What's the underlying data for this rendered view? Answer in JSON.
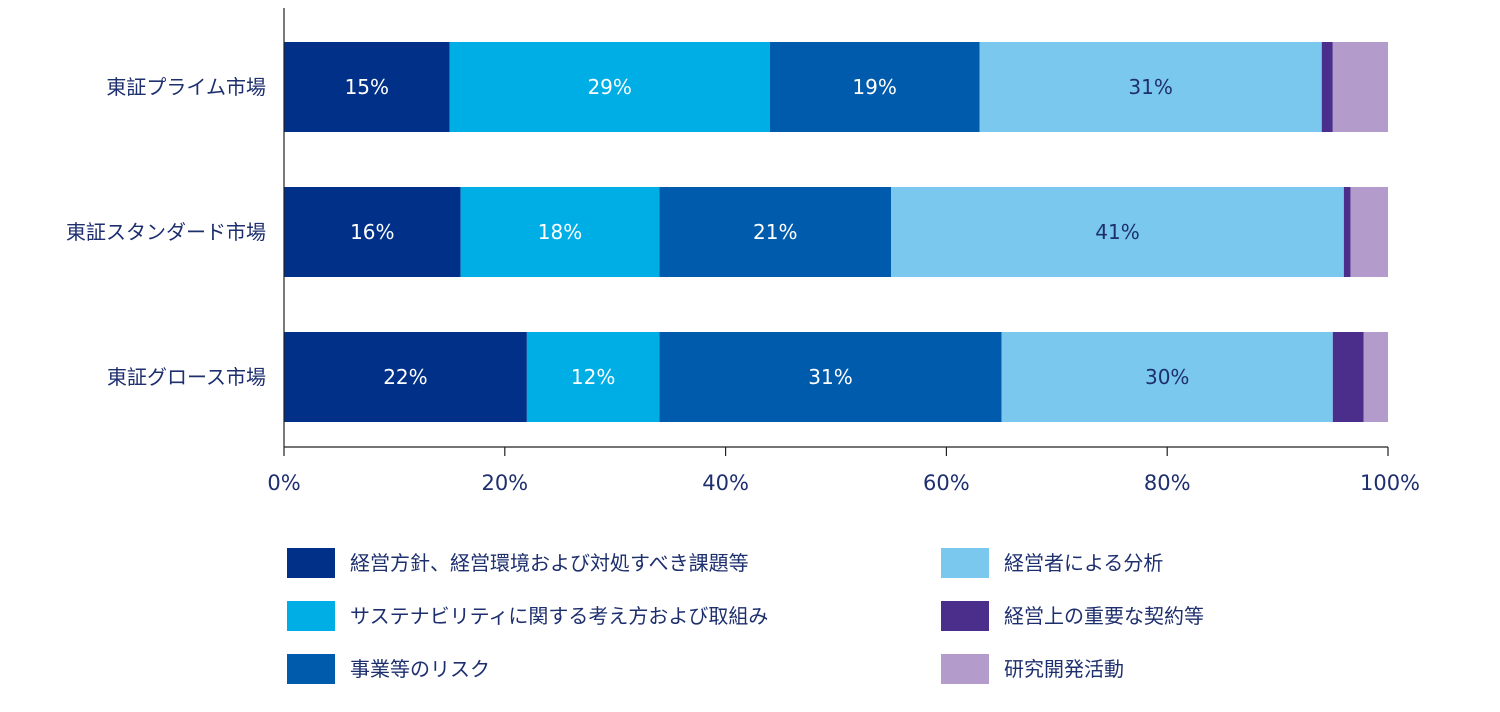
{
  "chart_data": {
    "type": "bar",
    "orientation": "horizontal",
    "stacked": true,
    "normalized": true,
    "categories": [
      "東証プライム市場",
      "東証スタンダード市場",
      "東証グロース市場"
    ],
    "series": [
      {
        "name": "経営方針、経営環境および対処すべき課題等",
        "color": "#003087",
        "label_color": "#ffffff",
        "values": [
          15,
          16,
          22
        ],
        "labels": [
          "15%",
          "16%",
          "22%"
        ]
      },
      {
        "name": "サステナビリティに関する考え方および取組み",
        "color": "#00aee6",
        "label_color": "#ffffff",
        "values": [
          29,
          18,
          12
        ],
        "labels": [
          "29%",
          "18%",
          "12%"
        ]
      },
      {
        "name": "事業等のリスク",
        "color": "#005bac",
        "label_color": "#ffffff",
        "values": [
          19,
          21,
          31
        ],
        "labels": [
          "19%",
          "21%",
          "31%"
        ]
      },
      {
        "name": "経営者による分析",
        "color": "#7ac8ee",
        "label_color": "#1e2f6e",
        "values": [
          31,
          41,
          30
        ],
        "labels": [
          "31%",
          "41%",
          "30%"
        ]
      },
      {
        "name": "経営上の重要な契約等",
        "color": "#4b2e8c",
        "label_color": "#ffffff",
        "values": [
          1,
          0.6,
          2.8
        ],
        "labels": [
          "",
          "",
          ""
        ]
      },
      {
        "name": "研究開発活動",
        "color": "#b39bcb",
        "label_color": "#ffffff",
        "values": [
          5,
          3.4,
          2.2
        ],
        "labels": [
          "",
          "",
          ""
        ]
      }
    ],
    "xlim": [
      0,
      100
    ],
    "xticks": [
      0,
      20,
      40,
      60,
      80,
      100
    ],
    "xtick_labels": [
      "0%",
      "20%",
      "40%",
      "60%",
      "80%",
      "100%"
    ],
    "title": "",
    "xlabel": "",
    "ylabel": "",
    "grid": false,
    "legend_position": "bottom"
  }
}
